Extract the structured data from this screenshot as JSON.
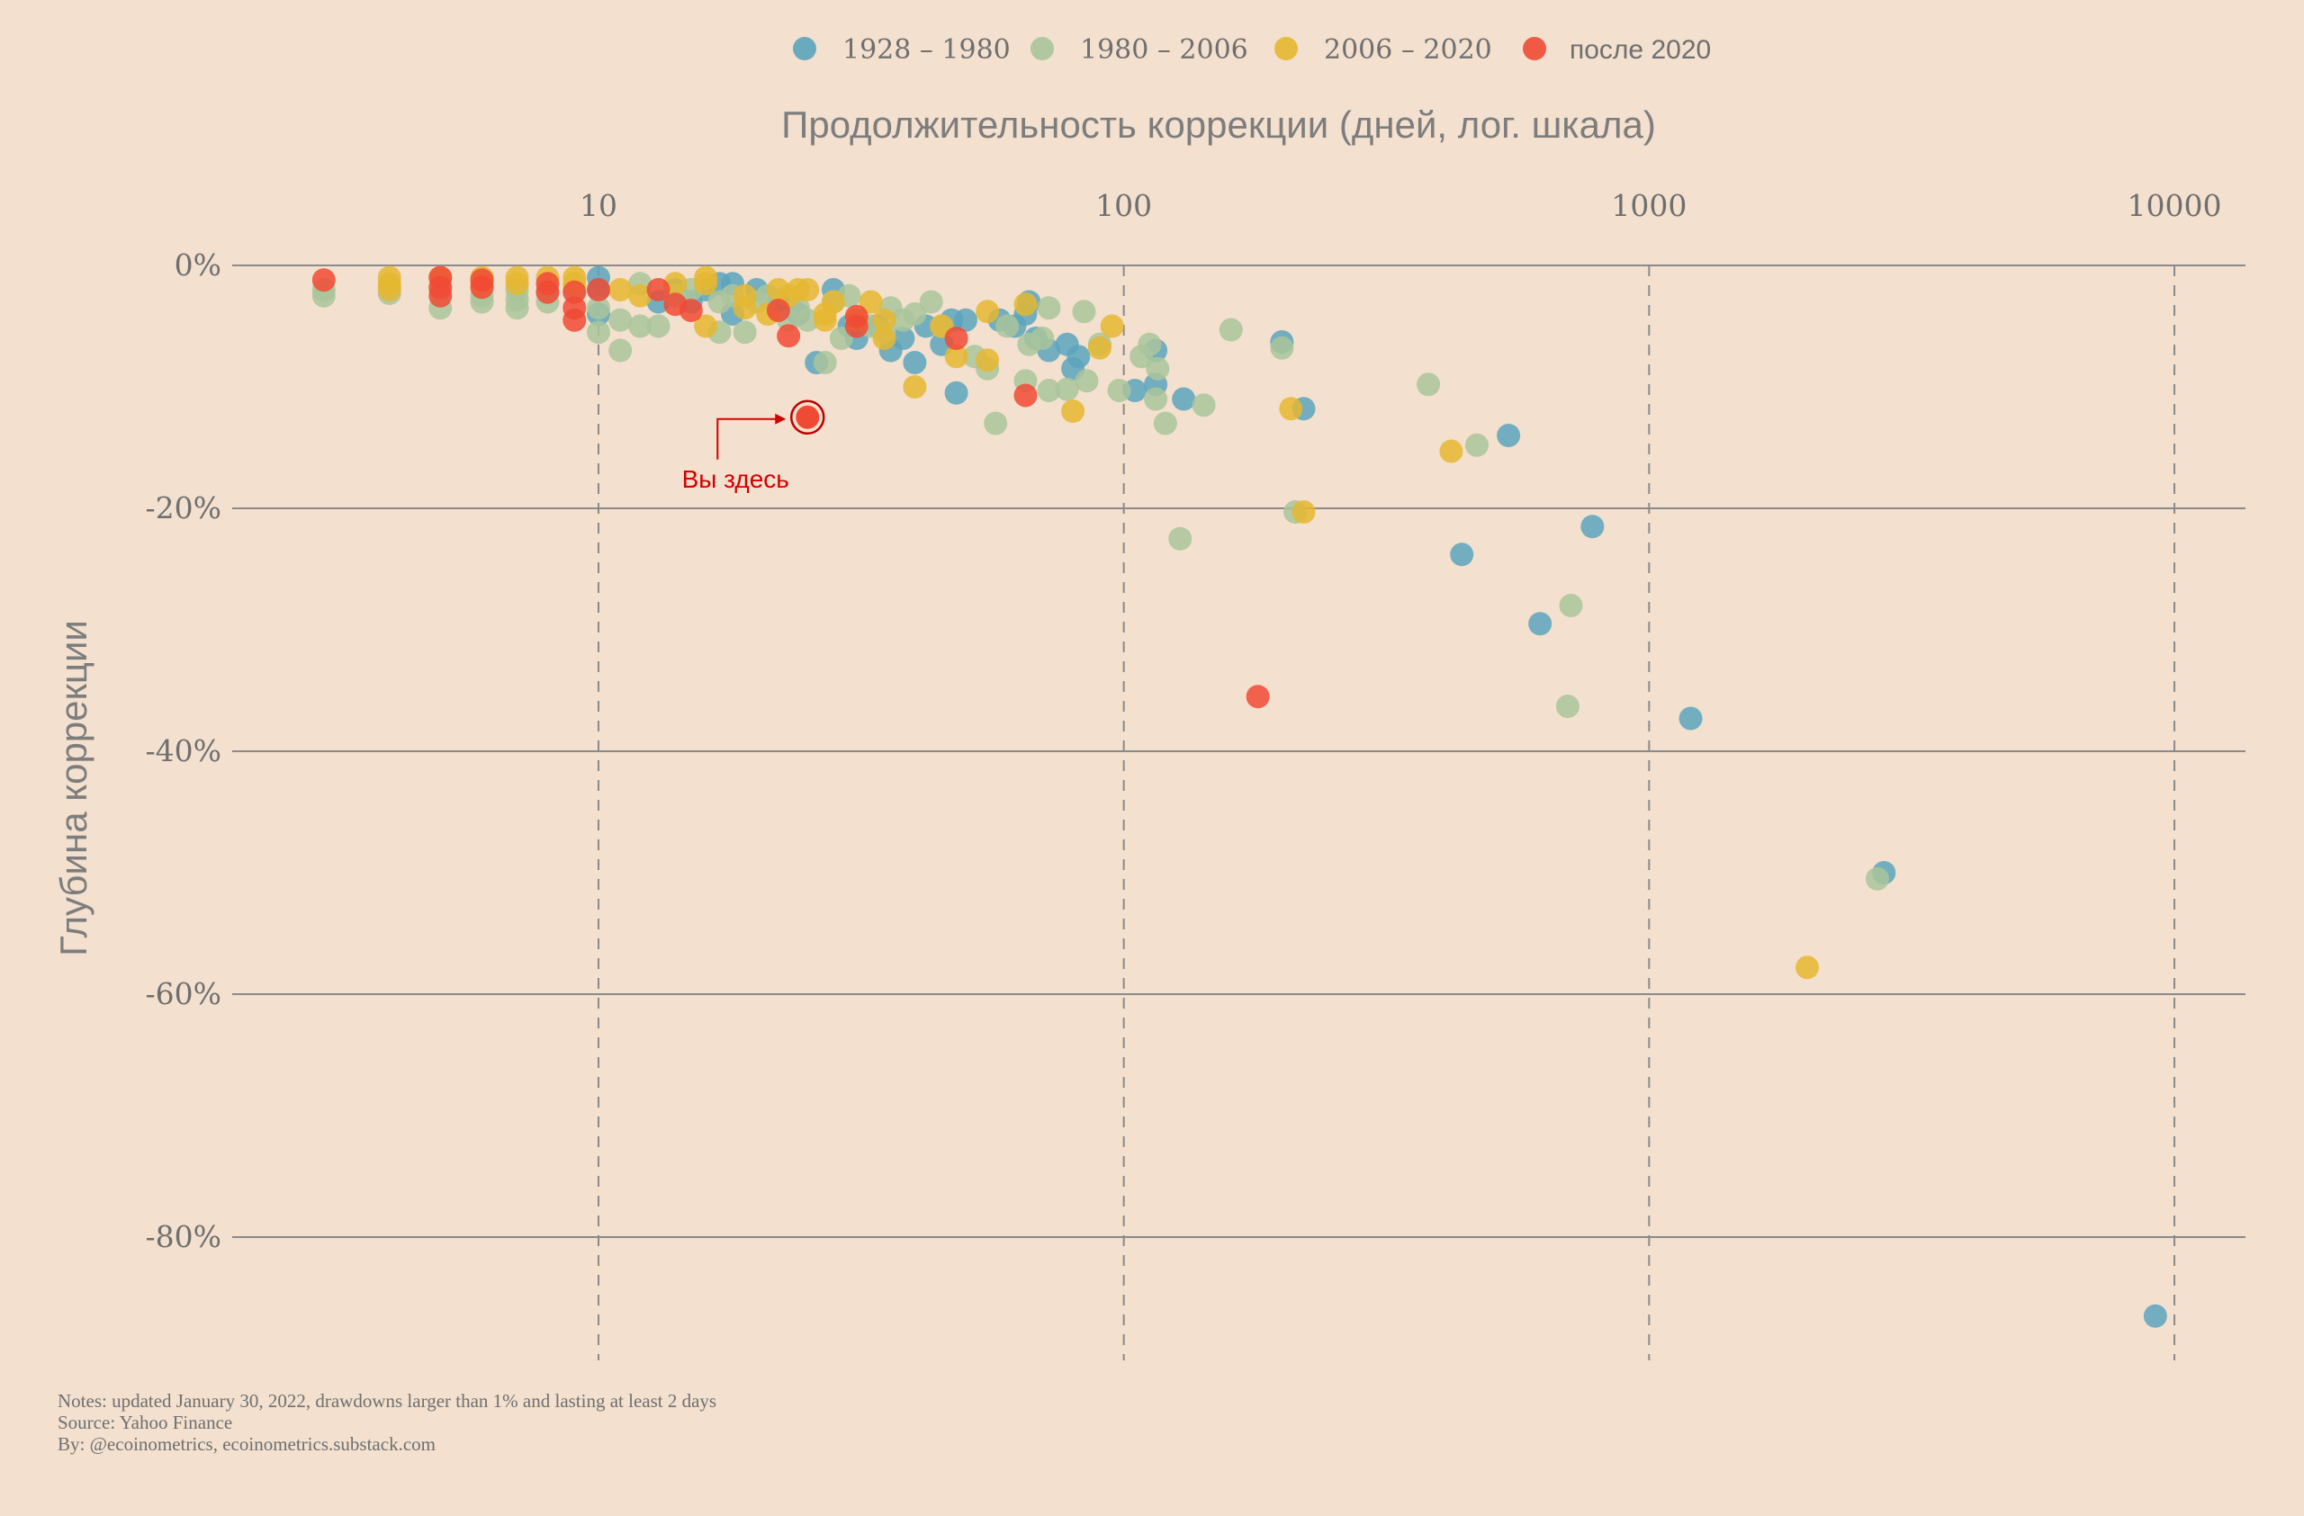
{
  "chart_data": {
    "type": "scatter",
    "title": "",
    "xlabel": "Продолжительность коррекции (дней, лог. шкала)",
    "ylabel": "Глубина коррекции",
    "x_scale": "log",
    "xlim": [
      2.6,
      13500
    ],
    "ylim": [
      -92,
      1.5
    ],
    "x_ticks": [
      10,
      100,
      1000,
      10000
    ],
    "x_tick_labels": [
      "10",
      "100",
      "1000",
      "10000"
    ],
    "y_ticks": [
      0,
      -20,
      -40,
      -60,
      -80
    ],
    "y_tick_labels": [
      "0%",
      "-20%",
      "-40%",
      "-60%",
      "-80%"
    ],
    "grid": true,
    "legend_position": "top",
    "series": [
      {
        "name": "1928 – 1980",
        "color": "#5ba4bd",
        "points": [
          [
            10,
            -1
          ],
          [
            10,
            -2
          ],
          [
            10,
            -4
          ],
          [
            13,
            -3
          ],
          [
            14,
            -2
          ],
          [
            15,
            -3
          ],
          [
            16,
            -2
          ],
          [
            17,
            -1.5
          ],
          [
            18,
            -1.5
          ],
          [
            18,
            -4
          ],
          [
            20,
            -2
          ],
          [
            22,
            -3
          ],
          [
            24,
            -4
          ],
          [
            26,
            -8
          ],
          [
            28,
            -2
          ],
          [
            30,
            -5
          ],
          [
            31,
            -6
          ],
          [
            34,
            -5
          ],
          [
            36,
            -7
          ],
          [
            38,
            -6
          ],
          [
            40,
            -8
          ],
          [
            42,
            -5
          ],
          [
            45,
            -6.5
          ],
          [
            47,
            -4.5
          ],
          [
            48,
            -10.5
          ],
          [
            50,
            -4.5
          ],
          [
            58,
            -4.5
          ],
          [
            62,
            -5
          ],
          [
            65,
            -4
          ],
          [
            66,
            -3
          ],
          [
            68,
            -6
          ],
          [
            72,
            -7
          ],
          [
            78,
            -6.5
          ],
          [
            80,
            -8.5
          ],
          [
            82,
            -7.5
          ],
          [
            105,
            -10.3
          ],
          [
            115,
            -7
          ],
          [
            115,
            -9.8
          ],
          [
            130,
            -11
          ],
          [
            200,
            -6.3
          ],
          [
            220,
            -11.8
          ],
          [
            440,
            -23.8
          ],
          [
            540,
            -14
          ],
          [
            620,
            -29.5
          ],
          [
            780,
            -21.5
          ],
          [
            1200,
            -37.3
          ],
          [
            2800,
            -50
          ],
          [
            9200,
            -86.5
          ]
        ]
      },
      {
        "name": "1980 – 2006",
        "color": "#a9c49b",
        "points": [
          [
            3,
            -2.5
          ],
          [
            3,
            -2
          ],
          [
            4,
            -2.3
          ],
          [
            4,
            -1.8
          ],
          [
            5,
            -3.5
          ],
          [
            5,
            -2
          ],
          [
            6,
            -3
          ],
          [
            6,
            -2.5
          ],
          [
            7,
            -3.5
          ],
          [
            7,
            -2.8
          ],
          [
            7,
            -2
          ],
          [
            8,
            -3
          ],
          [
            8,
            -2.2
          ],
          [
            9,
            -2
          ],
          [
            10,
            -5.5
          ],
          [
            10,
            -3.5
          ],
          [
            11,
            -7
          ],
          [
            11,
            -4.5
          ],
          [
            12,
            -5
          ],
          [
            12,
            -1.5
          ],
          [
            13,
            -5
          ],
          [
            14,
            -2.5
          ],
          [
            15,
            -2
          ],
          [
            17,
            -5.5
          ],
          [
            17,
            -3
          ],
          [
            18,
            -2.5
          ],
          [
            19,
            -5.5
          ],
          [
            20,
            -3
          ],
          [
            21,
            -2.5
          ],
          [
            23,
            -4.5
          ],
          [
            24,
            -3.5
          ],
          [
            25,
            -4.5
          ],
          [
            27,
            -8
          ],
          [
            28,
            -3
          ],
          [
            29,
            -6
          ],
          [
            30,
            -2.5
          ],
          [
            33,
            -5
          ],
          [
            35,
            -5.5
          ],
          [
            36,
            -3.5
          ],
          [
            38,
            -4.5
          ],
          [
            40,
            -4
          ],
          [
            43,
            -3
          ],
          [
            45,
            -5
          ],
          [
            52,
            -7.5
          ],
          [
            55,
            -8.5
          ],
          [
            57,
            -13
          ],
          [
            60,
            -5
          ],
          [
            65,
            -9.5
          ],
          [
            66,
            -6.5
          ],
          [
            70,
            -6
          ],
          [
            72,
            -3.5
          ],
          [
            72,
            -10.3
          ],
          [
            78,
            -10.2
          ],
          [
            84,
            -3.8
          ],
          [
            85,
            -9.5
          ],
          [
            90,
            -6.5
          ],
          [
            98,
            -10.3
          ],
          [
            108,
            -7.5
          ],
          [
            112,
            -6.5
          ],
          [
            115,
            -11
          ],
          [
            116,
            -8.5
          ],
          [
            120,
            -13
          ],
          [
            128,
            -22.5
          ],
          [
            142,
            -11.5
          ],
          [
            160,
            -5.3
          ],
          [
            200,
            -6.8
          ],
          [
            212,
            -20.3
          ],
          [
            380,
            -9.8
          ],
          [
            470,
            -14.8
          ],
          [
            700,
            -36.3
          ],
          [
            710,
            -28
          ],
          [
            2720,
            -50.5
          ]
        ]
      },
      {
        "name": "2006 – 2020",
        "color": "#e5b731",
        "points": [
          [
            4,
            -1
          ],
          [
            4,
            -1.5
          ],
          [
            4,
            -2
          ],
          [
            5,
            -1
          ],
          [
            6,
            -1
          ],
          [
            6,
            -1.5
          ],
          [
            7,
            -1
          ],
          [
            7,
            -1.5
          ],
          [
            8,
            -1
          ],
          [
            9,
            -1
          ],
          [
            9,
            -1.5
          ],
          [
            11,
            -2
          ],
          [
            12,
            -2.5
          ],
          [
            14,
            -1.5
          ],
          [
            16,
            -1
          ],
          [
            16,
            -1.5
          ],
          [
            16,
            -5
          ],
          [
            19,
            -2.5
          ],
          [
            19,
            -3.5
          ],
          [
            21,
            -4
          ],
          [
            22,
            -2
          ],
          [
            23,
            -2.5
          ],
          [
            24,
            -2
          ],
          [
            25,
            -2
          ],
          [
            27,
            -4
          ],
          [
            27,
            -4.5
          ],
          [
            28,
            -3
          ],
          [
            31,
            -4.5
          ],
          [
            33,
            -3
          ],
          [
            35,
            -4.5
          ],
          [
            35,
            -6
          ],
          [
            40,
            -10
          ],
          [
            45,
            -5
          ],
          [
            48,
            -7.5
          ],
          [
            55,
            -3.8
          ],
          [
            55,
            -7.8
          ],
          [
            65,
            -3.2
          ],
          [
            80,
            -12
          ],
          [
            90,
            -6.8
          ],
          [
            95,
            -5
          ],
          [
            208,
            -11.8
          ],
          [
            220,
            -20.3
          ],
          [
            420,
            -15.3
          ],
          [
            2000,
            -57.8
          ]
        ]
      },
      {
        "name": "после 2020",
        "color": "#f04a35",
        "points": [
          [
            3,
            -1.2
          ],
          [
            5,
            -1
          ],
          [
            5,
            -1.8
          ],
          [
            5,
            -2.5
          ],
          [
            6,
            -1.2
          ],
          [
            6,
            -1.8
          ],
          [
            8,
            -1.5
          ],
          [
            8,
            -2.2
          ],
          [
            9,
            -2.2
          ],
          [
            9,
            -3.5
          ],
          [
            9,
            -4.5
          ],
          [
            10,
            -2
          ],
          [
            13,
            -2
          ],
          [
            14,
            -3.2
          ],
          [
            15,
            -3.7
          ],
          [
            22,
            -3.7
          ],
          [
            23,
            -5.8
          ],
          [
            31,
            -4.2
          ],
          [
            31,
            -5
          ],
          [
            48,
            -6
          ],
          [
            65,
            -10.7
          ],
          [
            180,
            -35.5
          ]
        ]
      }
    ],
    "highlight": {
      "x": 25,
      "y": -12.5,
      "color": "#f04a35"
    },
    "annotations": [
      {
        "text": "Вы здесь",
        "x": 25,
        "y": -12.5
      }
    ]
  },
  "footer": {
    "notes": "Notes: updated January 30, 2022, drawdowns larger than 1% and lasting at least 2 days",
    "source": "Source: Yahoo Finance",
    "by": "By: @ecoinometrics, ecoinometrics.substack.com"
  }
}
